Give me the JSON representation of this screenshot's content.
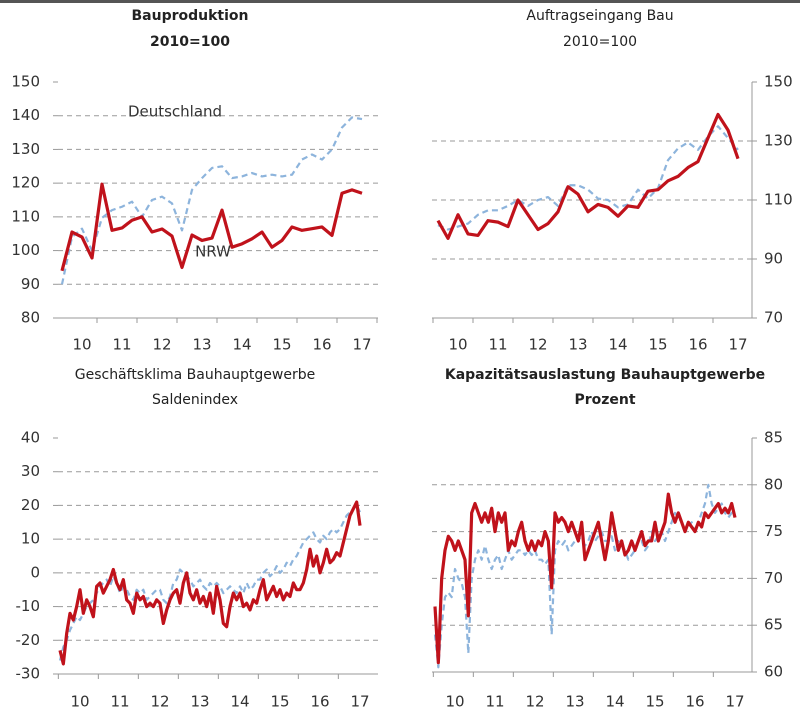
{
  "chart_data": [
    {
      "type": "line",
      "title": "Bauproduktion",
      "subtitle": "2010=100",
      "categories": [
        null,
        null,
        "10",
        null,
        null,
        null,
        "11",
        null,
        null,
        null,
        "12",
        null,
        null,
        null,
        "13",
        null,
        null,
        null,
        "14",
        null,
        null,
        null,
        "15",
        null,
        null,
        null,
        "16",
        null,
        null,
        null,
        "17"
      ],
      "series": [
        {
          "name": "Deutschland",
          "color": "#8db4dc",
          "values": [
            90,
            104,
            106.5,
            100,
            109.7,
            112,
            113,
            114.5,
            110,
            115,
            116,
            114,
            106,
            118,
            121.5,
            124.5,
            125,
            121.5,
            122,
            123,
            122,
            122.5,
            122,
            122.5,
            127,
            128.5,
            127,
            130,
            136.5,
            139.5,
            139
          ]
        },
        {
          "name": "NRW",
          "color": "#c0121b",
          "values": [
            94,
            105.5,
            104,
            97.8,
            119.7,
            106,
            106.7,
            109,
            110,
            105.5,
            106.4,
            104.3,
            95,
            104.6,
            103,
            103.7,
            112,
            101,
            102,
            103.5,
            105.5,
            101,
            103,
            107,
            106,
            106.5,
            107,
            104.5,
            117,
            118,
            117
          ]
        }
      ],
      "annotations": [
        "Deutschland",
        "NRW"
      ],
      "ylim": [
        80,
        150
      ],
      "yticks": [
        80,
        90,
        100,
        110,
        120,
        130,
        140,
        150
      ],
      "grid": true,
      "yaxis": "left"
    },
    {
      "type": "line",
      "title": "Auftragseingang Bau",
      "subtitle": "2010=100",
      "categories": [
        null,
        null,
        "10",
        null,
        null,
        null,
        "11",
        null,
        null,
        null,
        "12",
        null,
        null,
        null,
        "13",
        null,
        null,
        null,
        "14",
        null,
        null,
        null,
        "15",
        null,
        null,
        null,
        "16",
        null,
        null,
        null,
        "17"
      ],
      "series": [
        {
          "name": "Deutschland",
          "color": "#8db4dc",
          "values": [
            101.5,
            100,
            101,
            102,
            105,
            106.5,
            106.5,
            108,
            110,
            108,
            110,
            111,
            108,
            115,
            115,
            113.5,
            110.5,
            110,
            107.5,
            108.5,
            113.5,
            110.5,
            114,
            123.5,
            127.5,
            129.5,
            127,
            131.5,
            135,
            131,
            127
          ]
        },
        {
          "name": "NRW",
          "color": "#c0121b",
          "values": [
            103,
            97,
            105,
            98.5,
            98,
            103,
            102.5,
            101,
            110,
            105,
            100,
            102,
            106,
            114.5,
            112,
            106,
            108.5,
            107.5,
            104.5,
            108,
            107.5,
            113,
            113.5,
            116.5,
            118,
            121,
            123,
            131,
            139,
            133.7,
            124
          ]
        }
      ],
      "ylim": [
        70,
        150
      ],
      "yticks": [
        70,
        90,
        110,
        130,
        150
      ],
      "grid": true,
      "yaxis": "right"
    },
    {
      "type": "line",
      "title": "Geschäftsklima Bauhauptgewerbe",
      "subtitle": "Saldenindex",
      "categories": [
        null,
        null,
        null,
        null,
        null,
        null,
        "10",
        null,
        null,
        null,
        null,
        null,
        null,
        null,
        null,
        null,
        null,
        null,
        "11",
        null,
        null,
        null,
        null,
        null,
        null,
        null,
        null,
        null,
        null,
        null,
        "12",
        null,
        null,
        null,
        null,
        null,
        null,
        null,
        null,
        null,
        null,
        null,
        "13",
        null,
        null,
        null,
        null,
        null,
        null,
        null,
        null,
        null,
        null,
        null,
        "14",
        null,
        null,
        null,
        null,
        null,
        null,
        null,
        null,
        null,
        null,
        null,
        "15",
        null,
        null,
        null,
        null,
        null,
        null,
        null,
        null,
        null,
        null,
        null,
        "16",
        null,
        null,
        null,
        null,
        null,
        null,
        null,
        null,
        null,
        null,
        null,
        "17"
      ],
      "series": [
        {
          "name": "Deutschland",
          "color": "#8db4dc",
          "values": [
            -26,
            -22,
            -20,
            -17,
            -15,
            -13,
            -14,
            -12,
            -10,
            -9,
            -8,
            -6,
            -4,
            -3,
            -2,
            -4,
            -1,
            -3,
            -6,
            -4,
            -5,
            -7,
            -8,
            -5,
            -6,
            -5,
            -8,
            -7,
            -6,
            -5,
            -5,
            -8,
            -9,
            -7,
            -3,
            -2,
            1,
            0,
            -1,
            -2,
            -4,
            -3,
            -2,
            -4,
            -5,
            -3,
            -4,
            -3,
            -4,
            -6,
            -5,
            -4,
            -5,
            -6,
            -4,
            -6,
            -3,
            -5,
            -4,
            -2,
            -2,
            0,
            1,
            -1,
            0,
            2,
            0,
            1,
            3,
            2,
            4,
            5,
            7,
            9,
            10,
            11,
            12,
            10,
            9,
            11,
            10,
            12,
            13,
            12,
            13,
            15,
            17,
            18,
            19,
            20,
            18
          ]
        },
        {
          "name": "NRW",
          "color": "#c0121b",
          "values": [
            -23,
            -27,
            -18,
            -12,
            -14,
            -10,
            -5,
            -12,
            -8,
            -10,
            -13,
            -4,
            -3,
            -6,
            -4,
            -2,
            1,
            -3,
            -5,
            -2,
            -8,
            -9,
            -12,
            -6,
            -8,
            -7,
            -10,
            -9,
            -10,
            -8,
            -9,
            -15,
            -11,
            -8,
            -6,
            -5,
            -9,
            -3,
            0,
            -6,
            -8,
            -5,
            -9,
            -7,
            -10,
            -6,
            -12,
            -4,
            -8,
            -15,
            -16,
            -10,
            -6,
            -8,
            -6,
            -10,
            -9,
            -11,
            -8,
            -9,
            -5,
            -2,
            -8,
            -6,
            -4,
            -7,
            -5,
            -8,
            -6,
            -7,
            -3,
            -5,
            -5,
            -3,
            1,
            7,
            2,
            5,
            0,
            3,
            7,
            3,
            4,
            6,
            5,
            9,
            13,
            17,
            19,
            21,
            14
          ]
        }
      ],
      "ylim": [
        -30,
        40
      ],
      "yticks": [
        -30,
        -20,
        -10,
        0,
        10,
        20,
        30,
        40
      ],
      "grid": true,
      "yaxis": "left"
    },
    {
      "type": "line",
      "title": "Kapazitätsauslastung Bauhauptgewerbe",
      "subtitle": "Prozent",
      "categories": [
        null,
        null,
        null,
        null,
        null,
        null,
        "10",
        null,
        null,
        null,
        null,
        null,
        null,
        null,
        null,
        null,
        null,
        null,
        "11",
        null,
        null,
        null,
        null,
        null,
        null,
        null,
        null,
        null,
        null,
        null,
        "12",
        null,
        null,
        null,
        null,
        null,
        null,
        null,
        null,
        null,
        null,
        null,
        "13",
        null,
        null,
        null,
        null,
        null,
        null,
        null,
        null,
        null,
        null,
        null,
        "14",
        null,
        null,
        null,
        null,
        null,
        null,
        null,
        null,
        null,
        null,
        null,
        "15",
        null,
        null,
        null,
        null,
        null,
        null,
        null,
        null,
        null,
        null,
        null,
        "16",
        null,
        null,
        null,
        null,
        null,
        null,
        null,
        null,
        null,
        null,
        null,
        "17"
      ],
      "series": [
        {
          "name": "Deutschland",
          "color": "#8db4dc",
          "values": [
            64,
            60.5,
            65,
            68,
            68.5,
            68,
            71,
            70,
            69.5,
            68,
            62,
            70,
            72,
            73,
            72,
            73.5,
            72,
            71,
            72,
            72.5,
            71,
            72,
            73,
            72,
            72.5,
            73,
            73,
            72.5,
            73,
            72.5,
            73,
            72,
            72,
            71.5,
            72,
            64,
            73,
            74,
            73.5,
            74,
            73,
            73.5,
            74,
            74.5,
            74,
            73.5,
            74,
            75,
            74,
            74.5,
            75,
            74,
            74,
            74.5,
            73,
            74,
            73.5,
            73,
            72,
            72.5,
            73,
            74,
            74,
            73,
            73.5,
            75,
            74,
            74.5,
            75,
            74,
            75,
            76,
            77,
            76.5,
            76,
            75,
            75.5,
            76,
            75,
            76,
            77,
            78,
            80,
            78,
            77,
            77.5,
            78,
            77,
            76.5,
            77,
            77
          ]
        },
        {
          "name": "NRW",
          "color": "#c0121b",
          "values": [
            67,
            61,
            70,
            73,
            74.5,
            74,
            73,
            74,
            73,
            72,
            66,
            77,
            78,
            77,
            76,
            77,
            76,
            77.5,
            75,
            77,
            76,
            77,
            73,
            74,
            73.5,
            75,
            76,
            74,
            73,
            74,
            73,
            74,
            73.5,
            75,
            74,
            69,
            77,
            76,
            76.5,
            76,
            75,
            76,
            75,
            74,
            76,
            72,
            73,
            74,
            75,
            76,
            74,
            72,
            74,
            77,
            75,
            73,
            74,
            72.5,
            73,
            74,
            73,
            74,
            75,
            73.5,
            74,
            74,
            76,
            74,
            75,
            76,
            79,
            77,
            76,
            77,
            76,
            75,
            76,
            75.5,
            75,
            76,
            75.5,
            77,
            76.5,
            77,
            77.5,
            78,
            77,
            77.5,
            77,
            78,
            76.5
          ]
        }
      ],
      "ylim": [
        60,
        85
      ],
      "yticks": [
        60,
        65,
        70,
        75,
        80,
        85
      ],
      "grid": true,
      "yaxis": "right"
    }
  ]
}
